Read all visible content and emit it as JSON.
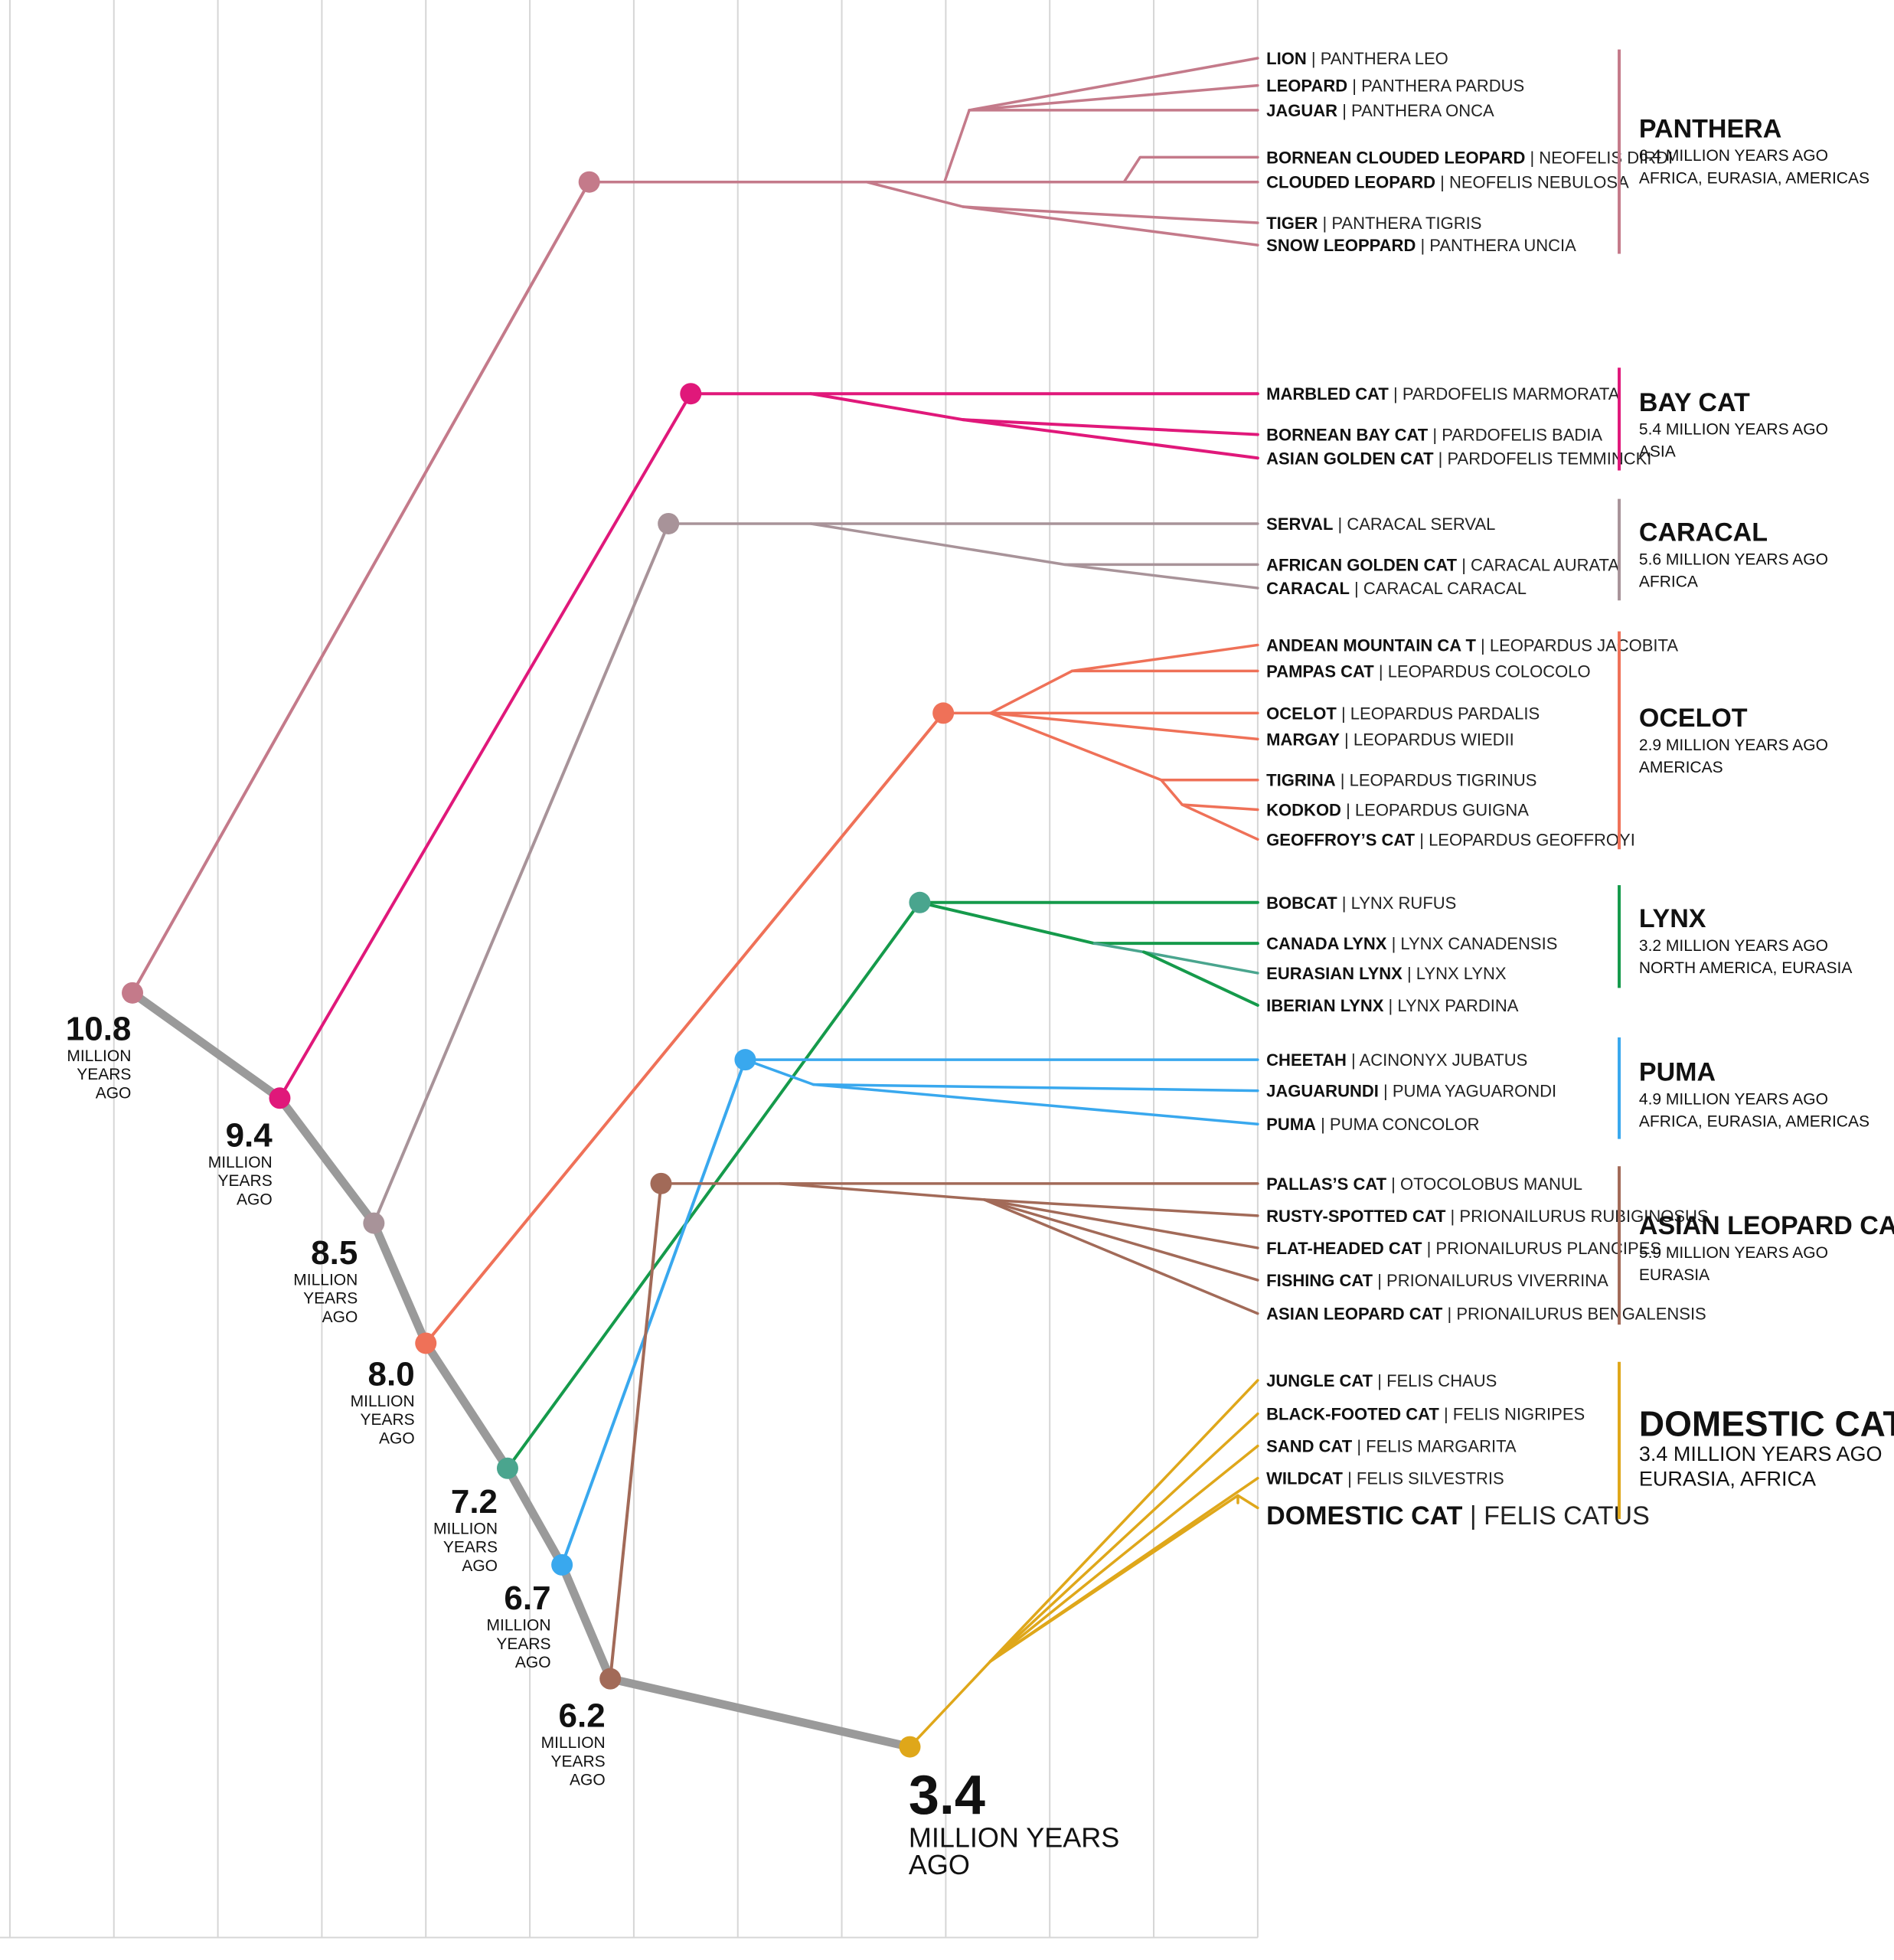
{
  "colors": {
    "trunk": "#9a9a9a",
    "grid": "#d6d6d6",
    "panthera": "#c47a8a",
    "baycat": "#e0187a",
    "caracal": "#a89399",
    "ocelot": "#ef7158",
    "lynx_node": "#4aa58e",
    "lynx_line": "#159a4b",
    "puma": "#39a8ee",
    "asianleopard": "#a26a58",
    "domestic": "#dfa71a"
  },
  "nodes": [
    {
      "id": "panthera",
      "value": "10.8",
      "sub1": "MILLION",
      "sub2": "YEARS",
      "sub3": "AGO"
    },
    {
      "id": "baycat",
      "value": "9.4",
      "sub1": "MILLION",
      "sub2": "YEARS",
      "sub3": "AGO"
    },
    {
      "id": "caracal",
      "value": "8.5",
      "sub1": "MILLION",
      "sub2": "YEARS",
      "sub3": "AGO"
    },
    {
      "id": "ocelot",
      "value": "8.0",
      "sub1": "MILLION",
      "sub2": "YEARS",
      "sub3": "AGO"
    },
    {
      "id": "lynx",
      "value": "7.2",
      "sub1": "MILLION",
      "sub2": "YEARS",
      "sub3": "AGO"
    },
    {
      "id": "puma",
      "value": "6.7",
      "sub1": "MILLION",
      "sub2": "YEARS",
      "sub3": "AGO"
    },
    {
      "id": "asianleopard",
      "value": "6.2",
      "sub1": "MILLION",
      "sub2": "YEARS",
      "sub3": "AGO"
    },
    {
      "id": "domestic",
      "value": "3.4",
      "sub1": "MILLION YEARS",
      "sub2": "AGO",
      "sub3": ""
    }
  ],
  "groups": [
    {
      "id": "panthera",
      "name": "PANTHERA",
      "age": "6.4 MILLION YEARS AGO",
      "region": "AFRICA, EURASIA, AMERICAS",
      "species": [
        {
          "common": "LION",
          "sci": "PANTHERA LEO"
        },
        {
          "common": "LEOPARD",
          "sci": "PANTHERA PARDUS"
        },
        {
          "common": "JAGUAR",
          "sci": "PANTHERA ONCA"
        },
        {
          "common": "BORNEAN CLOUDED LEOPARD",
          "sci": "NEOFELIS DIRDI"
        },
        {
          "common": "CLOUDED LEOPARD",
          "sci": "NEOFELIS NEBULOSA"
        },
        {
          "common": "TIGER",
          "sci": "PANTHERA TIGRIS"
        },
        {
          "common": "SNOW LEOPPARD",
          "sci": "PANTHERA UNCIA"
        }
      ]
    },
    {
      "id": "baycat",
      "name": "BAY CAT",
      "age": "5.4 MILLION YEARS AGO",
      "region": "ASIA",
      "species": [
        {
          "common": "MARBLED CAT",
          "sci": "PARDOFELIS MARMORATA"
        },
        {
          "common": "BORNEAN BAY CAT",
          "sci": "PARDOFELIS BADIA"
        },
        {
          "common": "ASIAN GOLDEN CAT",
          "sci": "PARDOFELIS TEMMINCKI"
        }
      ]
    },
    {
      "id": "caracal",
      "name": "CARACAL",
      "age": "5.6 MILLION YEARS AGO",
      "region": "AFRICA",
      "species": [
        {
          "common": "SERVAL",
          "sci": "CARACAL SERVAL"
        },
        {
          "common": "AFRICAN GOLDEN CAT",
          "sci": "CARACAL AURATA"
        },
        {
          "common": "CARACAL",
          "sci": "CARACAL CARACAL"
        }
      ]
    },
    {
      "id": "ocelot",
      "name": "OCELOT",
      "age": "2.9 MILLION YEARS AGO",
      "region": "AMERICAS",
      "species": [
        {
          "common": "ANDEAN MOUNTAIN CA T",
          "sci": "LEOPARDUS JACOBITA"
        },
        {
          "common": "PAMPAS CAT",
          "sci": "LEOPARDUS COLOCOLO"
        },
        {
          "common": "OCELOT",
          "sci": "LEOPARDUS PARDALIS"
        },
        {
          "common": "MARGAY",
          "sci": "LEOPARDUS WIEDII"
        },
        {
          "common": "TIGRINA",
          "sci": "LEOPARDUS TIGRINUS"
        },
        {
          "common": "KODKOD",
          "sci": "LEOPARDUS GUIGNA"
        },
        {
          "common": "GEOFFROY’S CAT",
          "sci": "LEOPARDUS GEOFFROYI"
        }
      ]
    },
    {
      "id": "lynx",
      "name": "LYNX",
      "age": "3.2 MILLION YEARS AGO",
      "region": "NORTH AMERICA, EURASIA",
      "species": [
        {
          "common": "BOBCAT",
          "sci": "LYNX RUFUS"
        },
        {
          "common": "CANADA LYNX",
          "sci": "LYNX CANADENSIS"
        },
        {
          "common": "EURASIAN LYNX",
          "sci": "LYNX LYNX"
        },
        {
          "common": "IBERIAN LYNX",
          "sci": "LYNX PARDINA"
        }
      ]
    },
    {
      "id": "puma",
      "name": "PUMA",
      "age": "4.9 MILLION YEARS AGO",
      "region": "AFRICA, EURASIA, AMERICAS",
      "species": [
        {
          "common": "CHEETAH",
          "sci": "ACINONYX JUBATUS"
        },
        {
          "common": "JAGUARUNDI",
          "sci": "PUMA YAGUARONDI"
        },
        {
          "common": "PUMA",
          "sci": "PUMA CONCOLOR"
        }
      ]
    },
    {
      "id": "asianleopard",
      "name": "ASIAN LEOPARD CAT",
      "age": "5.9 MILLION YEARS AGO",
      "region": "EURASIA",
      "species": [
        {
          "common": "PALLAS’S CAT",
          "sci": "OTOCOLOBUS MANUL"
        },
        {
          "common": "RUSTY-SPOTTED CAT",
          "sci": "PRIONAILURUS RUBIGINOSUS"
        },
        {
          "common": "FLAT-HEADED CAT",
          "sci": "PRIONAILURUS PLANCIPES"
        },
        {
          "common": "FISHING CAT",
          "sci": "PRIONAILURUS VIVERRINA"
        },
        {
          "common": "ASIAN LEOPARD CAT",
          "sci": "PRIONAILURUS BENGALENSIS"
        }
      ]
    },
    {
      "id": "domestic",
      "name": "DOMESTIC CAT",
      "age": "3.4 MILLION YEARS AGO",
      "region": "EURASIA, AFRICA",
      "species": [
        {
          "common": "JUNGLE CAT",
          "sci": "FELIS CHAUS"
        },
        {
          "common": "BLACK-FOOTED CAT",
          "sci": "FELIS NIGRIPES"
        },
        {
          "common": "SAND CAT",
          "sci": "FELIS MARGARITA"
        },
        {
          "common": "WILDCAT",
          "sci": "FELIS SILVESTRIS"
        },
        {
          "common": "DOMESTIC CAT",
          "sci": "FELIS CATUS"
        }
      ]
    }
  ]
}
